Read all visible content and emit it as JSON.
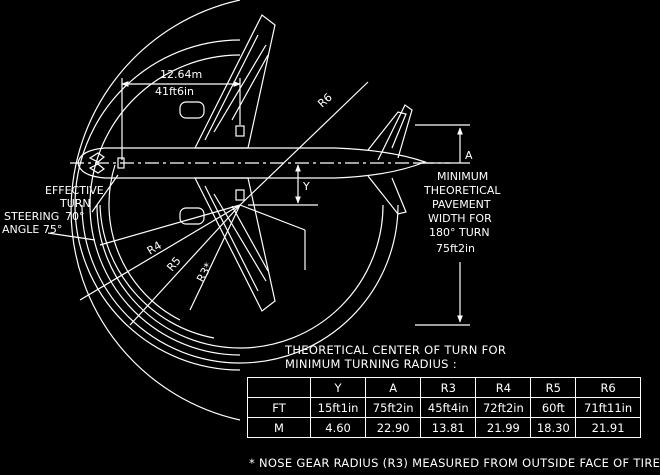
{
  "dim_1264": {
    "m": "12.64m",
    "ft": "41ft6in"
  },
  "labels": {
    "r6": "R6",
    "r4": "R4",
    "r5": "R5",
    "r3": "R3*",
    "a": "A",
    "y": "Y",
    "effective": [
      "EFFECTIVE",
      "TURN",
      "70°"
    ],
    "steering": [
      "STEERING",
      "ANGLE 75°"
    ],
    "pavement": [
      "MINIMUM",
      "THEORETICAL",
      "PAVEMENT",
      "WIDTH FOR",
      "180° TURN",
      "75ft2in"
    ]
  },
  "caption": [
    "THEORETICAL CENTER OF TURN FOR",
    "MINIMUM TURNING RADIUS :"
  ],
  "table": {
    "headers": [
      "",
      "Y",
      "A",
      "R3",
      "R4",
      "R5",
      "R6"
    ],
    "rows": [
      [
        "FT",
        "15ft1in",
        "75ft2in",
        "45ft4in",
        "72ft2in",
        "60ft",
        "71ft11in"
      ],
      [
        "M",
        "4.60",
        "22.90",
        "13.81",
        "21.99",
        "18.30",
        "21.91"
      ]
    ]
  },
  "note": "* NOSE GEAR RADIUS (R3) MEASURED FROM OUTSIDE FACE OF TIRE"
}
